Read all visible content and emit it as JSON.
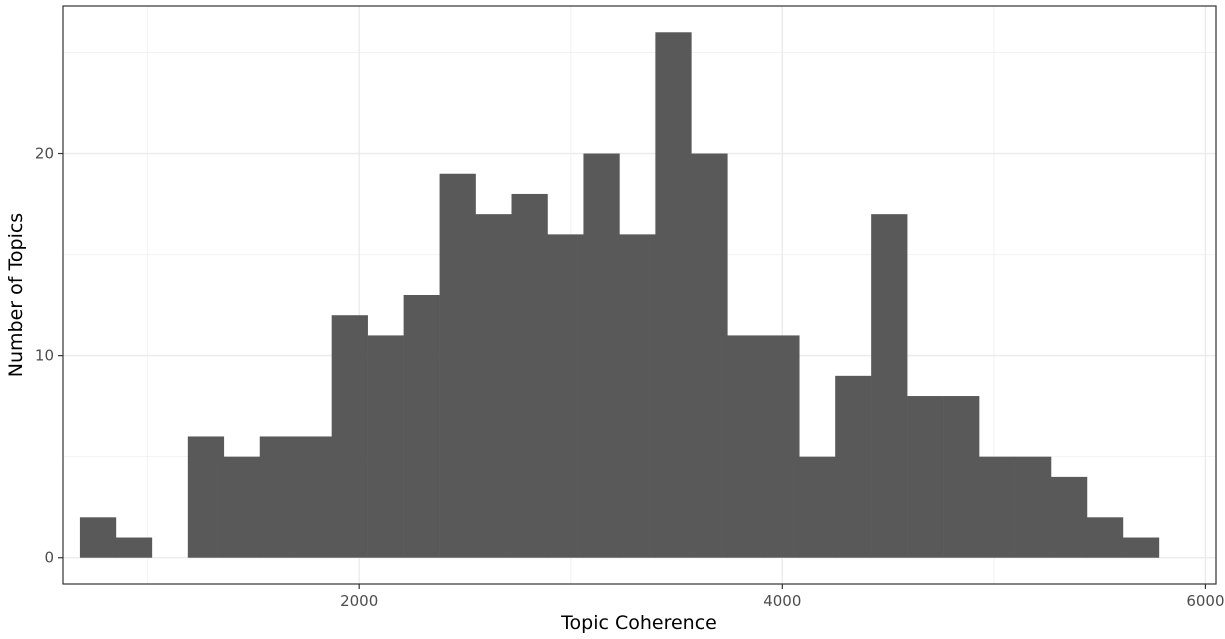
{
  "chart_data": {
    "type": "bar",
    "subtype": "histogram",
    "title": "",
    "xlabel": "Topic Coherence",
    "ylabel": "Number of Topics",
    "xlim": [
      600,
      6050
    ],
    "ylim": [
      -1.3,
      27.3
    ],
    "x_ticks": [
      2000,
      4000,
      6000
    ],
    "x_tick_labels": [
      "2000",
      "4000",
      "6000"
    ],
    "y_ticks": [
      0,
      10,
      20
    ],
    "y_tick_labels": [
      "0",
      "10",
      "20"
    ],
    "bin_width": 170,
    "bin_starts": [
      680,
      850,
      1020,
      1190,
      1360,
      1530,
      1700,
      1870,
      2040,
      2210,
      2380,
      2550,
      2720,
      2890,
      3060,
      3230,
      3400,
      3570,
      3740,
      3910,
      4080,
      4250,
      4420,
      4590,
      4760,
      4930,
      5100,
      5270,
      5440,
      5610
    ],
    "values": [
      2,
      1,
      0,
      6,
      5,
      6,
      6,
      12,
      11,
      13,
      19,
      17,
      18,
      16,
      20,
      16,
      26,
      20,
      11,
      11,
      5,
      9,
      17,
      8,
      8,
      5,
      5,
      4,
      2,
      1
    ],
    "grid": true,
    "legend": "none",
    "colors": {
      "bar": "#595959",
      "panel_border": "#333333",
      "grid_major": "#ebebeb",
      "grid_minor": "#f2f2f2",
      "tick_label": "#4d4d4d",
      "axis_title": "#000000"
    }
  }
}
